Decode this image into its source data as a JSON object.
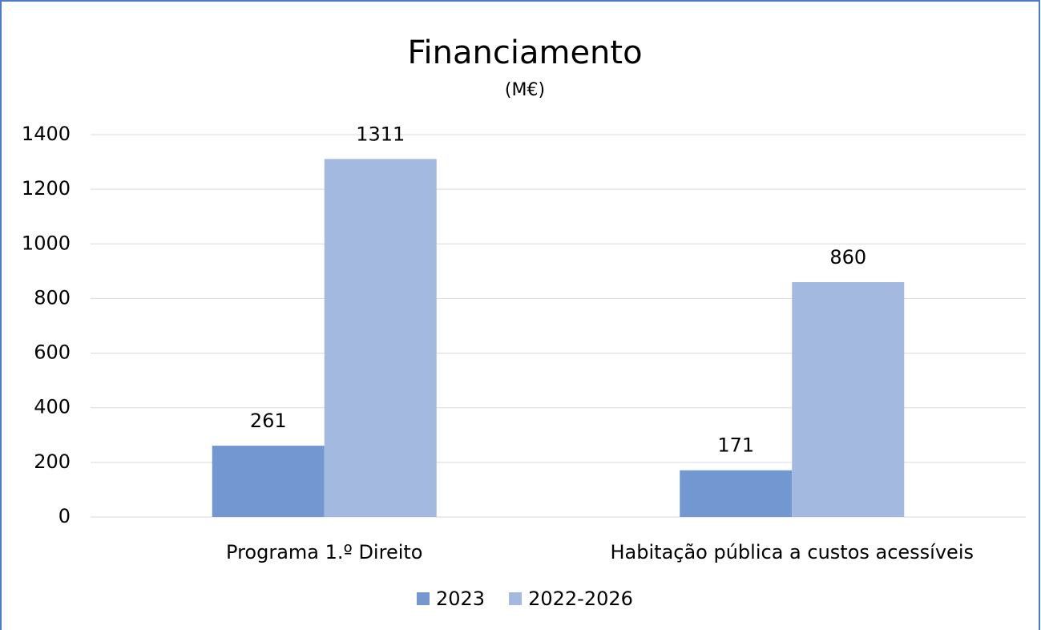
{
  "chart_data": {
    "type": "bar",
    "title": "Financiamento",
    "subtitle": "(M€)",
    "categories": [
      "Programa 1.º Direito",
      "Habitação pública a custos acessíveis"
    ],
    "series": [
      {
        "name": "2023",
        "color": "#7398d1",
        "values": [
          261,
          171
        ]
      },
      {
        "name": "2022-2026",
        "color": "#a3b9e0",
        "values": [
          1311,
          860
        ]
      }
    ],
    "ylim": [
      0,
      1400
    ],
    "yticks": [
      0,
      200,
      400,
      600,
      800,
      1000,
      1200,
      1400
    ],
    "grid": true,
    "legend": "bottom"
  }
}
